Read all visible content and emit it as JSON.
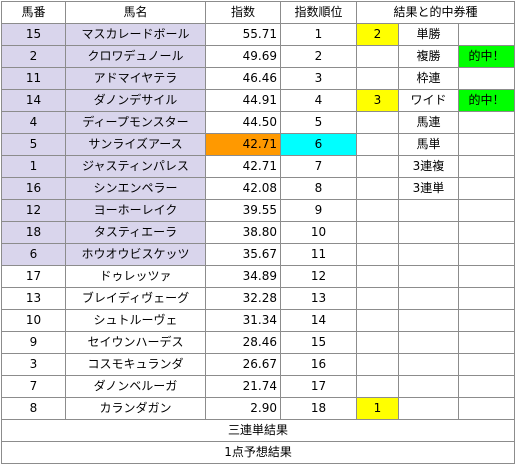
{
  "headers": {
    "num": "馬番",
    "name": "馬名",
    "index": "指数",
    "rank": "指数順位",
    "result": "結果と的中券種"
  },
  "rows": [
    {
      "num": "15",
      "name": "マスカレードボール",
      "index": "55.71",
      "rank": "1",
      "mark": "2",
      "bet": "単勝",
      "hit": ""
    },
    {
      "num": "2",
      "name": "クロワデュノール",
      "index": "49.69",
      "rank": "2",
      "mark": "",
      "bet": "複勝",
      "hit": "的中！"
    },
    {
      "num": "11",
      "name": "アドマイヤテラ",
      "index": "46.46",
      "rank": "3",
      "mark": "",
      "bet": "枠連",
      "hit": ""
    },
    {
      "num": "14",
      "name": "ダノンデサイル",
      "index": "44.91",
      "rank": "4",
      "mark": "3",
      "bet": "ワイド",
      "hit": "的中！"
    },
    {
      "num": "4",
      "name": "ディープモンスター",
      "index": "44.50",
      "rank": "5",
      "mark": "",
      "bet": "馬連",
      "hit": ""
    },
    {
      "num": "5",
      "name": "サンライズアース",
      "index": "42.71",
      "rank": "6",
      "mark": "",
      "bet": "馬単",
      "hit": ""
    },
    {
      "num": "1",
      "name": "ジャスティンパレス",
      "index": "42.71",
      "rank": "7",
      "mark": "",
      "bet": "3連複",
      "hit": ""
    },
    {
      "num": "16",
      "name": "シンエンペラー",
      "index": "42.08",
      "rank": "8",
      "mark": "",
      "bet": "3連単",
      "hit": ""
    },
    {
      "num": "12",
      "name": "ヨーホーレイク",
      "index": "39.55",
      "rank": "9",
      "mark": "",
      "bet": "",
      "hit": ""
    },
    {
      "num": "18",
      "name": "タスティエーラ",
      "index": "38.80",
      "rank": "10",
      "mark": "",
      "bet": "",
      "hit": ""
    },
    {
      "num": "6",
      "name": "ホウオウビスケッツ",
      "index": "35.67",
      "rank": "11",
      "mark": "",
      "bet": "",
      "hit": ""
    },
    {
      "num": "17",
      "name": "ドゥレッツァ",
      "index": "34.89",
      "rank": "12",
      "mark": "",
      "bet": "",
      "hit": ""
    },
    {
      "num": "13",
      "name": "ブレイディヴェーグ",
      "index": "32.28",
      "rank": "13",
      "mark": "",
      "bet": "",
      "hit": ""
    },
    {
      "num": "10",
      "name": "シュトルーヴェ",
      "index": "31.34",
      "rank": "14",
      "mark": "",
      "bet": "",
      "hit": ""
    },
    {
      "num": "9",
      "name": "セイウンハーデス",
      "index": "28.46",
      "rank": "15",
      "mark": "",
      "bet": "",
      "hit": ""
    },
    {
      "num": "3",
      "name": "コスモキュランダ",
      "index": "26.67",
      "rank": "16",
      "mark": "",
      "bet": "",
      "hit": ""
    },
    {
      "num": "7",
      "name": "ダノンベルーガ",
      "index": "21.74",
      "rank": "17",
      "mark": "",
      "bet": "",
      "hit": ""
    },
    {
      "num": "8",
      "name": "カランダガン",
      "index": "2.90",
      "rank": "18",
      "mark": "1",
      "bet": "",
      "hit": ""
    }
  ],
  "footer": {
    "line1": "三連単結果",
    "line2": "1点予想結果"
  },
  "colors": {
    "highlight_rows": "#d9d5ec",
    "index_highlight": "#ff9900",
    "rank_highlight": "#00ffff",
    "mark": "#ffff00",
    "hit": "#00ff00"
  }
}
